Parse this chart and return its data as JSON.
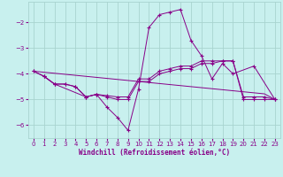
{
  "xlabel": "Windchill (Refroidissement éolien,°C)",
  "background_color": "#c8f0ee",
  "grid_color": "#a8d4d0",
  "line_color": "#880088",
  "xlim": [
    -0.5,
    23.5
  ],
  "ylim": [
    -6.5,
    -1.2
  ],
  "yticks": [
    -6,
    -5,
    -4,
    -3,
    -2
  ],
  "xticks": [
    0,
    1,
    2,
    3,
    4,
    5,
    6,
    7,
    8,
    9,
    10,
    11,
    12,
    13,
    14,
    15,
    16,
    17,
    18,
    19,
    20,
    21,
    22,
    23
  ],
  "line1_x": [
    1,
    2,
    5,
    6,
    7,
    8,
    9,
    10,
    11,
    12,
    13,
    14,
    15,
    16,
    17,
    18,
    19,
    21,
    23
  ],
  "line1_y": [
    -4.1,
    -4.4,
    -4.9,
    -4.8,
    -5.3,
    -5.7,
    -6.2,
    -4.6,
    -2.2,
    -1.7,
    -1.6,
    -1.5,
    -2.7,
    -3.3,
    -4.2,
    -3.6,
    -4.0,
    -3.7,
    -5.0
  ],
  "line2_x": [
    0,
    1,
    2,
    3,
    4,
    5,
    6,
    7,
    8,
    9,
    10,
    11,
    12,
    13,
    14,
    15,
    16,
    17,
    18,
    19,
    20,
    21,
    22,
    23
  ],
  "line2_y": [
    -3.9,
    -4.1,
    -4.4,
    -4.4,
    -4.5,
    -4.9,
    -4.8,
    -4.85,
    -4.9,
    -4.9,
    -4.2,
    -4.2,
    -3.9,
    -3.8,
    -3.7,
    -3.7,
    -3.5,
    -3.5,
    -3.5,
    -3.5,
    -4.9,
    -4.9,
    -4.9,
    -5.0
  ],
  "line3_x": [
    0,
    1,
    2,
    3,
    4,
    5,
    6,
    7,
    8,
    9,
    10,
    11,
    12,
    13,
    14,
    15,
    16,
    17,
    18,
    19,
    20,
    21,
    22,
    23
  ],
  "line3_y": [
    -3.9,
    -4.1,
    -4.4,
    -4.4,
    -4.5,
    -4.9,
    -4.8,
    -4.9,
    -5.0,
    -5.0,
    -4.3,
    -4.3,
    -4.0,
    -3.9,
    -3.8,
    -3.8,
    -3.6,
    -3.6,
    -3.5,
    -3.5,
    -5.0,
    -5.0,
    -5.0,
    -5.0
  ],
  "line4_x": [
    0,
    1,
    2,
    3,
    4,
    5,
    6,
    7,
    8,
    9,
    10,
    11,
    12,
    13,
    14,
    15,
    16,
    17,
    18,
    19,
    20,
    21,
    22,
    23
  ],
  "line4_y": [
    -3.9,
    -3.94,
    -3.98,
    -4.02,
    -4.06,
    -4.1,
    -4.14,
    -4.18,
    -4.22,
    -4.26,
    -4.3,
    -4.34,
    -4.38,
    -4.42,
    -4.46,
    -4.5,
    -4.54,
    -4.58,
    -4.62,
    -4.66,
    -4.7,
    -4.74,
    -4.78,
    -5.0
  ]
}
